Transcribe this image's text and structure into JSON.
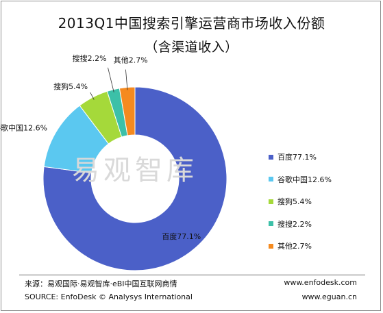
{
  "header": {
    "title": "2013Q1中国搜索引擎运营商市场收入份额",
    "subtitle": "（含渠道收入）"
  },
  "chart_data": {
    "type": "pie",
    "variant": "donut",
    "categories": [
      "百度",
      "谷歌中国",
      "搜狗",
      "搜搜",
      "其他"
    ],
    "values": [
      77.1,
      12.6,
      5.4,
      2.2,
      2.7
    ],
    "labels": [
      "百度77.1%",
      "谷歌中国12.6%",
      "搜狗5.4%",
      "搜搜2.2%",
      "其他2.7%"
    ],
    "colors": [
      "#4b60c8",
      "#5bc8f0",
      "#a5d93a",
      "#3cc0a8",
      "#f58a1f"
    ],
    "legend_position": "right",
    "watermark": "易观智库"
  },
  "footer": {
    "source_cn": "来源：易观国际·易观智库·eBI中国互联网商情",
    "source_en": "SOURCE: EnfoDesk © Analysys International",
    "url1": "www.enfodesk.com",
    "url2": "www.eguan.cn"
  }
}
